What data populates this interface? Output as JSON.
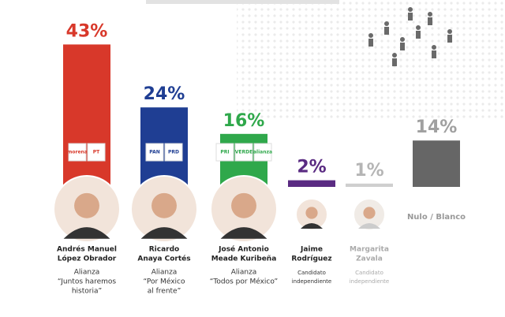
{
  "chart_data": {
    "type": "bar",
    "values": [
      43,
      24,
      16,
      2,
      1,
      14
    ],
    "value_labels": [
      "43%",
      "24%",
      "16%",
      "2%",
      "1%",
      "14%"
    ],
    "colors": [
      "#d8382a",
      "#1f3e93",
      "#2fa84b",
      "#5a2b82",
      "#cfcfcf",
      "#666666"
    ],
    "label_colors": [
      "#d8382a",
      "#1f3e93",
      "#2fa84b",
      "#5a2b82",
      "#b5b5b5",
      "#a0a0a0"
    ],
    "candidates": [
      {
        "name": [
          "Andrés Manuel",
          "López Obrador"
        ],
        "note": [
          "Alianza",
          "“Juntos haremos",
          "historia”"
        ],
        "logos": [
          "morena",
          "PT"
        ]
      },
      {
        "name": [
          "Ricardo",
          "Anaya Cortés"
        ],
        "note": [
          "Alianza",
          "“Por México",
          "al frente”"
        ],
        "logos": [
          "PAN",
          "PRD"
        ]
      },
      {
        "name": [
          "José Antonio",
          "Meade Kuribeña"
        ],
        "note": [
          "Alianza",
          "“Todos por México”"
        ],
        "logos": [
          "PRI",
          "VERDE",
          "alianza"
        ]
      },
      {
        "name": [
          "Jaime",
          "Rodríguez"
        ],
        "note": [
          "Candidato",
          "independiente"
        ],
        "logos": []
      },
      {
        "name": [
          "Margarita",
          "Zavala"
        ],
        "note": [
          "Candidato",
          "independiente"
        ],
        "logos": []
      },
      {
        "name": [
          "Nulo / Blanco"
        ],
        "note": [],
        "logos": []
      }
    ]
  }
}
